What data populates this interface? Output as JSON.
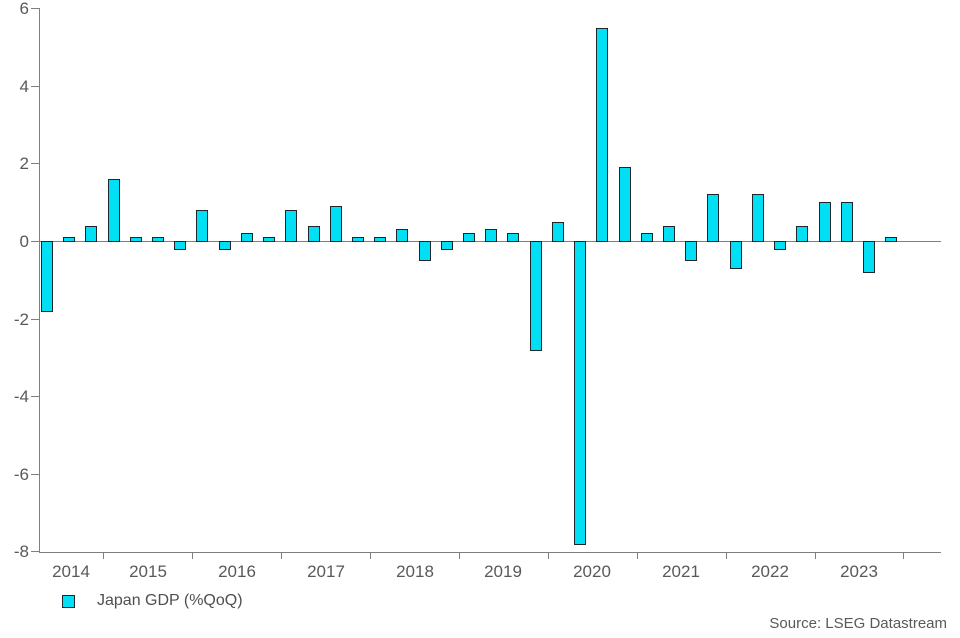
{
  "chart_data": {
    "type": "bar",
    "title": "",
    "series_name": "Japan GDP (%QoQ)",
    "x": [
      "2014 Q2",
      "2014 Q3",
      "2014 Q4",
      "2015 Q1",
      "2015 Q2",
      "2015 Q3",
      "2015 Q4",
      "2016 Q1",
      "2016 Q2",
      "2016 Q3",
      "2016 Q4",
      "2017 Q1",
      "2017 Q2",
      "2017 Q3",
      "2017 Q4",
      "2018 Q1",
      "2018 Q2",
      "2018 Q3",
      "2018 Q4",
      "2019 Q1",
      "2019 Q2",
      "2019 Q3",
      "2019 Q4",
      "2020 Q1",
      "2020 Q2",
      "2020 Q3",
      "2020 Q4",
      "2021 Q1",
      "2021 Q2",
      "2021 Q3",
      "2021 Q4",
      "2022 Q1",
      "2022 Q2",
      "2022 Q3",
      "2022 Q4",
      "2023 Q1",
      "2023 Q2",
      "2023 Q3",
      "2023 Q4"
    ],
    "values": [
      -1.8,
      0.1,
      0.4,
      1.6,
      0.1,
      0.1,
      -0.2,
      0.8,
      -0.2,
      0.2,
      0.1,
      0.8,
      0.4,
      0.9,
      0.1,
      0.1,
      0.3,
      -0.5,
      -0.2,
      0.2,
      0.3,
      0.2,
      -2.8,
      0.5,
      -7.8,
      5.5,
      1.9,
      0.2,
      0.4,
      -0.5,
      1.2,
      -0.7,
      1.2,
      -0.2,
      0.4,
      1.0,
      1.0,
      -0.8,
      0.1
    ],
    "ylim": [
      -8,
      6
    ],
    "yticks": [
      6,
      4,
      2,
      0,
      -2,
      -4,
      -6,
      -8
    ],
    "year_labels": [
      "2014",
      "2015",
      "2016",
      "2017",
      "2018",
      "2019",
      "2020",
      "2021",
      "2022",
      "2023"
    ],
    "grid": false,
    "legend_position": "bottom-left",
    "xlabel": "",
    "ylabel": ""
  },
  "legend": {
    "label": "Japan GDP (%QoQ)",
    "swatch_color": "#00dff4"
  },
  "source": {
    "text": "Source: LSEG Datastream"
  },
  "colors": {
    "bar_fill": "#00dff4",
    "bar_border": "#1d252d",
    "axis": "#7f7f7f",
    "label_text": "#595959"
  }
}
